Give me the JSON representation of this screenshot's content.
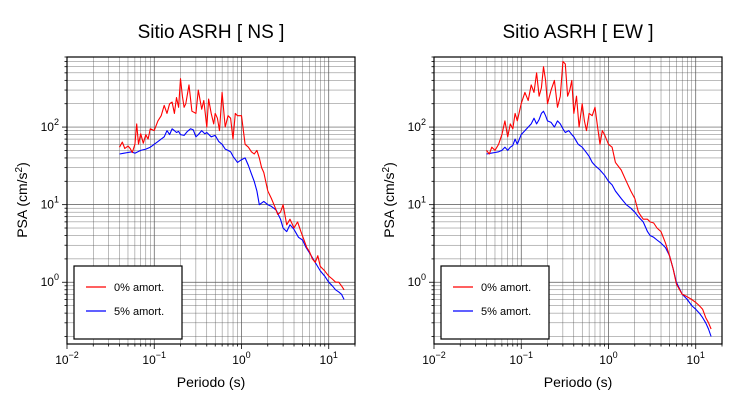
{
  "chart_data": [
    {
      "type": "line",
      "title": "Sitio ASRH [ NS ]",
      "xlabel": "Periodo (s)",
      "ylabel_main": "PSA (cm/s",
      "ylabel_sup": "2",
      "ylabel_close": ")",
      "xscale": "log",
      "yscale": "log",
      "xlim": [
        0.01,
        20
      ],
      "ylim": [
        0.16,
        800
      ],
      "grid": true,
      "legend_position": "bottom-left",
      "x_ticks": [
        {
          "value": 0.01,
          "base": "10",
          "exp": "−2"
        },
        {
          "value": 0.1,
          "base": "10",
          "exp": "−1"
        },
        {
          "value": 1,
          "base": "10",
          "exp": "0"
        },
        {
          "value": 10,
          "base": "10",
          "exp": "1"
        }
      ],
      "y_ticks": [
        {
          "value": 1,
          "base": "10",
          "exp": "0"
        },
        {
          "value": 10,
          "base": "10",
          "exp": "1"
        },
        {
          "value": 100,
          "base": "10",
          "exp": "2"
        }
      ],
      "series": [
        {
          "name": "0% amort.",
          "color": "#ff0000",
          "x": [
            0.04,
            0.043,
            0.046,
            0.05,
            0.053,
            0.056,
            0.06,
            0.063,
            0.066,
            0.07,
            0.075,
            0.08,
            0.085,
            0.09,
            0.1,
            0.11,
            0.12,
            0.13,
            0.14,
            0.15,
            0.16,
            0.17,
            0.18,
            0.19,
            0.2,
            0.21,
            0.22,
            0.23,
            0.25,
            0.27,
            0.3,
            0.32,
            0.35,
            0.37,
            0.4,
            0.42,
            0.45,
            0.48,
            0.5,
            0.53,
            0.56,
            0.6,
            0.65,
            0.7,
            0.75,
            0.8,
            0.85,
            0.9,
            1.0,
            1.1,
            1.2,
            1.3,
            1.4,
            1.5,
            1.6,
            1.7,
            1.8,
            2.0,
            2.2,
            2.4,
            2.6,
            2.8,
            3.0,
            3.3,
            3.6,
            4.0,
            4.4,
            4.8,
            5.2,
            5.6,
            6.0,
            6.5,
            7.0,
            7.5,
            8.0,
            9.0,
            10.0,
            11.0,
            12.0,
            13.0,
            14.0,
            15.0
          ],
          "y": [
            55,
            64,
            53,
            57,
            53,
            47,
            60,
            110,
            60,
            82,
            62,
            80,
            70,
            95,
            90,
            120,
            140,
            190,
            150,
            200,
            210,
            150,
            240,
            180,
            420,
            250,
            180,
            200,
            350,
            160,
            150,
            300,
            170,
            220,
            100,
            230,
            150,
            110,
            150,
            130,
            90,
            280,
            100,
            140,
            130,
            70,
            150,
            140,
            140,
            60,
            55,
            48,
            45,
            50,
            40,
            30,
            26,
            15,
            12,
            9.5,
            7.5,
            8.0,
            10.0,
            5.5,
            6.5,
            5.0,
            6.0,
            4.5,
            3.5,
            2.8,
            2.5,
            2.0,
            1.8,
            2.2,
            1.6,
            1.4,
            1.2,
            1.1,
            1.0,
            1.0,
            0.9,
            0.8
          ]
        },
        {
          "name": "5% amort.",
          "color": "#0000ff",
          "x": [
            0.04,
            0.045,
            0.05,
            0.055,
            0.06,
            0.065,
            0.07,
            0.08,
            0.09,
            0.1,
            0.11,
            0.12,
            0.13,
            0.14,
            0.15,
            0.16,
            0.17,
            0.18,
            0.19,
            0.2,
            0.22,
            0.24,
            0.26,
            0.28,
            0.3,
            0.32,
            0.35,
            0.38,
            0.4,
            0.45,
            0.5,
            0.55,
            0.6,
            0.65,
            0.7,
            0.75,
            0.8,
            0.9,
            1.0,
            1.1,
            1.2,
            1.3,
            1.4,
            1.5,
            1.6,
            1.8,
            2.0,
            2.2,
            2.5,
            2.8,
            3.0,
            3.3,
            3.6,
            4.0,
            4.5,
            5.0,
            5.5,
            6.0,
            7.0,
            8.0,
            9.0,
            10.0,
            11.0,
            12.0,
            13.0,
            14.0,
            15.0
          ],
          "y": [
            45,
            46,
            47,
            48,
            46,
            48,
            50,
            52,
            55,
            60,
            65,
            70,
            75,
            90,
            80,
            95,
            90,
            85,
            88,
            80,
            78,
            88,
            95,
            92,
            75,
            80,
            90,
            82,
            85,
            75,
            78,
            65,
            60,
            52,
            50,
            48,
            42,
            35,
            38,
            40,
            32,
            25,
            20,
            15,
            10,
            11,
            10,
            9.5,
            8.5,
            6.5,
            5.0,
            4.5,
            5.5,
            4.8,
            3.8,
            3.5,
            2.8,
            2.4,
            1.8,
            1.4,
            1.2,
            1.0,
            0.9,
            0.8,
            0.75,
            0.7,
            0.6
          ]
        }
      ]
    },
    {
      "type": "line",
      "title": "Sitio ASRH [ EW ]",
      "xlabel": "Periodo (s)",
      "ylabel_main": "PSA (cm/s",
      "ylabel_sup": "2",
      "ylabel_close": ")",
      "xscale": "log",
      "yscale": "log",
      "xlim": [
        0.01,
        20
      ],
      "ylim": [
        0.16,
        800
      ],
      "grid": true,
      "legend_position": "bottom-left",
      "x_ticks": [
        {
          "value": 0.01,
          "base": "10",
          "exp": "−2"
        },
        {
          "value": 0.1,
          "base": "10",
          "exp": "−1"
        },
        {
          "value": 1,
          "base": "10",
          "exp": "0"
        },
        {
          "value": 10,
          "base": "10",
          "exp": "1"
        }
      ],
      "y_ticks": [
        {
          "value": 1,
          "base": "10",
          "exp": "0"
        },
        {
          "value": 10,
          "base": "10",
          "exp": "1"
        },
        {
          "value": 100,
          "base": "10",
          "exp": "2"
        }
      ],
      "series": [
        {
          "name": "0% amort.",
          "color": "#ff0000",
          "x": [
            0.04,
            0.043,
            0.046,
            0.05,
            0.055,
            0.06,
            0.065,
            0.07,
            0.075,
            0.08,
            0.085,
            0.09,
            0.1,
            0.11,
            0.12,
            0.13,
            0.14,
            0.15,
            0.16,
            0.17,
            0.18,
            0.19,
            0.2,
            0.22,
            0.24,
            0.26,
            0.28,
            0.3,
            0.32,
            0.34,
            0.36,
            0.38,
            0.4,
            0.43,
            0.46,
            0.5,
            0.53,
            0.56,
            0.6,
            0.65,
            0.7,
            0.75,
            0.8,
            0.85,
            0.9,
            1.0,
            1.1,
            1.2,
            1.4,
            1.6,
            1.8,
            2.0,
            2.2,
            2.5,
            2.8,
            3.0,
            3.3,
            3.6,
            4.0,
            4.5,
            5.0,
            5.5,
            6.0,
            7.0,
            8.0,
            9.0,
            10.0,
            11.0,
            12.0,
            13.0,
            14.0,
            15.0
          ],
          "y": [
            50,
            45,
            55,
            50,
            60,
            80,
            120,
            75,
            110,
            95,
            150,
            120,
            200,
            280,
            220,
            350,
            280,
            500,
            250,
            320,
            600,
            400,
            200,
            300,
            400,
            180,
            250,
            700,
            650,
            250,
            300,
            400,
            150,
            250,
            100,
            200,
            120,
            90,
            150,
            140,
            180,
            100,
            60,
            90,
            80,
            60,
            55,
            35,
            28,
            20,
            15,
            12,
            8,
            6.5,
            6.5,
            6.0,
            5.8,
            5.0,
            4.5,
            3.2,
            2.2,
            1.5,
            0.95,
            0.7,
            0.65,
            0.6,
            0.55,
            0.5,
            0.45,
            0.35,
            0.3,
            0.25
          ]
        },
        {
          "name": "5% amort.",
          "color": "#0000ff",
          "x": [
            0.04,
            0.045,
            0.05,
            0.055,
            0.06,
            0.065,
            0.07,
            0.075,
            0.08,
            0.085,
            0.09,
            0.1,
            0.11,
            0.12,
            0.13,
            0.14,
            0.15,
            0.16,
            0.17,
            0.18,
            0.19,
            0.2,
            0.22,
            0.24,
            0.26,
            0.28,
            0.3,
            0.32,
            0.35,
            0.38,
            0.4,
            0.45,
            0.5,
            0.55,
            0.6,
            0.65,
            0.7,
            0.8,
            0.9,
            1.0,
            1.1,
            1.2,
            1.4,
            1.6,
            1.8,
            2.0,
            2.2,
            2.5,
            2.8,
            3.0,
            3.3,
            3.6,
            4.0,
            4.5,
            5.0,
            5.5,
            6.0,
            7.0,
            8.0,
            9.0,
            10.0,
            11.0,
            12.0,
            13.0,
            14.0,
            15.0
          ],
          "y": [
            45,
            46,
            47,
            48,
            50,
            55,
            50,
            55,
            58,
            70,
            60,
            80,
            90,
            100,
            110,
            130,
            110,
            125,
            150,
            160,
            140,
            120,
            115,
            100,
            120,
            110,
            95,
            85,
            90,
            80,
            75,
            60,
            55,
            48,
            42,
            35,
            32,
            28,
            24,
            20,
            18,
            15,
            12,
            10,
            9,
            8,
            7,
            6,
            4.5,
            4.0,
            3.8,
            3.5,
            3.2,
            2.8,
            2.2,
            1.5,
            1.0,
            0.7,
            0.6,
            0.5,
            0.45,
            0.4,
            0.35,
            0.3,
            0.25,
            0.2
          ]
        }
      ]
    }
  ]
}
